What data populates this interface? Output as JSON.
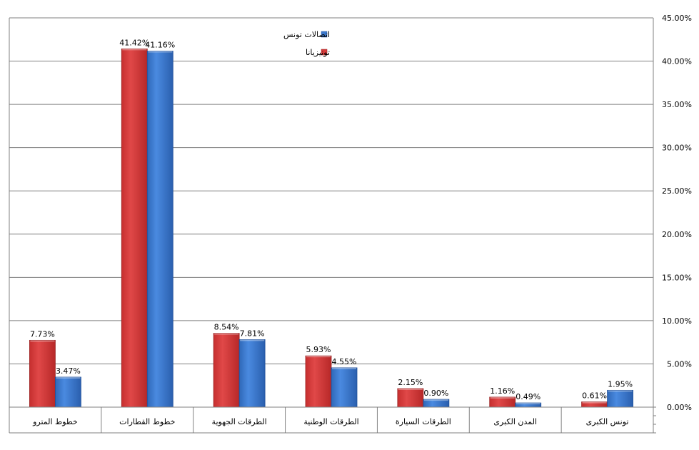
{
  "chart_data": {
    "type": "bar",
    "categories": [
      "خطوط المترو",
      "خطوط القطارات",
      "الطرقات الجهوية",
      "الطرقات الوطنية",
      "الطرقات السيارة",
      "المدن الكبرى",
      "تونس الكبرى"
    ],
    "series": [
      {
        "name": "تونيزيانا",
        "values": [
          7.73,
          41.42,
          8.54,
          5.93,
          2.15,
          1.16,
          0.61
        ],
        "labels": [
          "7.73%",
          "41.42%",
          "8.54%",
          "5.93%",
          "2.15%",
          "1.16%",
          "0.61%"
        ]
      },
      {
        "name": "اتصالات تونس",
        "values": [
          3.47,
          41.16,
          7.81,
          4.55,
          0.9,
          0.49,
          1.95
        ],
        "labels": [
          "3.47%",
          "41.16%",
          "7.81%",
          "4.55%",
          "0.90%",
          "0.49%",
          "1.95%"
        ]
      }
    ],
    "y_ticks": [
      "0.00%",
      "5.00%",
      "10.00%",
      "15.00%",
      "20.00%",
      "25.00%",
      "30.00%",
      "35.00%",
      "40.00%",
      "45.00%"
    ],
    "ylim": [
      0,
      45
    ],
    "y_axis_side": "right",
    "grid": true,
    "legend_position": "top-center",
    "legend_order": [
      "اتصالات تونس",
      "تونيزيانا"
    ],
    "colors": {
      "تونيزيانا": "#d63a3a",
      "اتصالات تونس": "#3b78cc"
    }
  }
}
